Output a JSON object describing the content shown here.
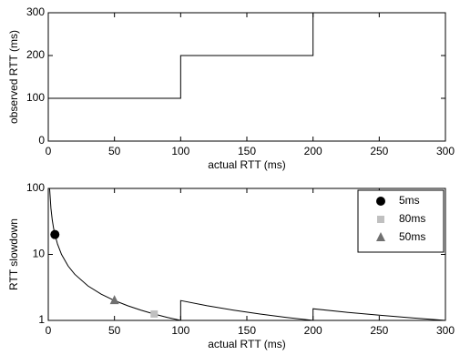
{
  "chart_data": [
    {
      "type": "line",
      "xlabel": "actual RTT (ms)",
      "ylabel": "observed RTT (ms)",
      "xlim": [
        0,
        300
      ],
      "xticks": [
        0,
        50,
        100,
        150,
        200,
        250,
        300
      ],
      "ylim": [
        0,
        300
      ],
      "yticks": [
        0,
        100,
        200,
        300
      ],
      "series": [
        {
          "type": "line",
          "color": "#000000",
          "x": [
            0,
            100,
            100,
            200,
            200,
            300
          ],
          "values": [
            100,
            100,
            200,
            200,
            300,
            300
          ]
        }
      ]
    },
    {
      "type": "line",
      "xlabel": "actual RTT (ms)",
      "ylabel": "RTT slowdown",
      "xlim": [
        0,
        300
      ],
      "xticks": [
        0,
        50,
        100,
        150,
        200,
        250,
        300
      ],
      "ylim": [
        1,
        100
      ],
      "yticks": [
        1,
        10,
        100
      ],
      "ylog": true,
      "legend": "upper right",
      "series": [
        {
          "type": "line",
          "color": "#000000",
          "x": [
            1,
            2,
            3,
            4,
            5,
            7,
            10,
            15,
            20,
            30,
            40,
            50,
            60,
            70,
            80,
            90,
            100,
            100,
            120,
            140,
            160,
            180,
            200,
            200,
            225,
            250,
            275,
            300
          ],
          "values": [
            100,
            50,
            33.3,
            25,
            20,
            14.3,
            10,
            6.67,
            5,
            3.33,
            2.5,
            2,
            1.67,
            1.43,
            1.25,
            1.11,
            1,
            2,
            1.67,
            1.43,
            1.25,
            1.11,
            1,
            1.5,
            1.33,
            1.2,
            1.09,
            1
          ]
        },
        {
          "type": "scatter",
          "name": "5ms",
          "marker": "circle",
          "color": "#000000",
          "x": [
            5
          ],
          "values": [
            20
          ]
        },
        {
          "type": "scatter",
          "name": "80ms",
          "marker": "square",
          "color": "#c0c0c0",
          "x": [
            80
          ],
          "values": [
            1.25
          ]
        },
        {
          "type": "scatter",
          "name": "50ms",
          "marker": "triangle",
          "color": "#707070",
          "x": [
            50
          ],
          "values": [
            2
          ]
        }
      ]
    }
  ]
}
